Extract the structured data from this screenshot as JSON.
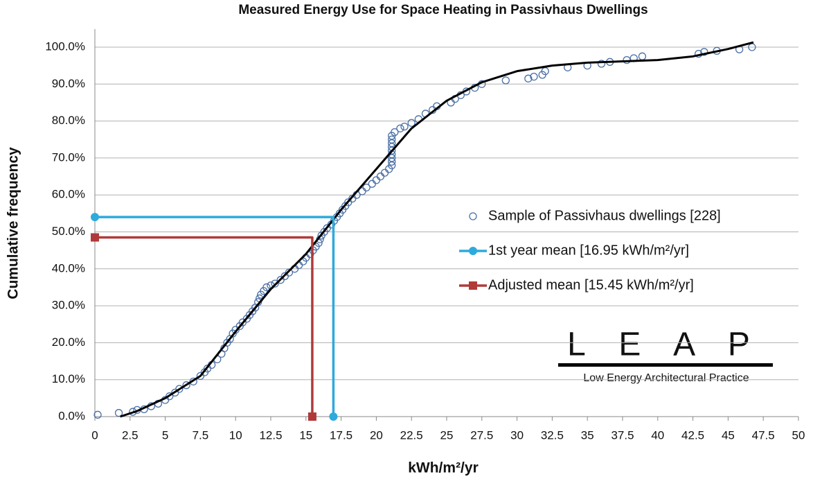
{
  "chart_data": {
    "type": "scatter",
    "title": "Measured Energy Use for Space Heating in Passivhaus Dwellings",
    "x_label": "kWh/m²/yr",
    "y_label": "Cumulative frequency",
    "xlim": [
      0,
      50
    ],
    "xticks": [
      0,
      2.5,
      5,
      7.5,
      10,
      12.5,
      15,
      17.5,
      20,
      22.5,
      25,
      27.5,
      30,
      32.5,
      35,
      37.5,
      40,
      42.5,
      45,
      47.5,
      50
    ],
    "ylim": [
      0,
      100
    ],
    "yticks": [
      {
        "value": 0,
        "label": "0.0%"
      },
      {
        "value": 10,
        "label": "10.0%"
      },
      {
        "value": 20,
        "label": "20.0%"
      },
      {
        "value": 30,
        "label": "30.0%"
      },
      {
        "value": 40,
        "label": "40.0%"
      },
      {
        "value": 50,
        "label": "50.0%"
      },
      {
        "value": 60,
        "label": "60.0%"
      },
      {
        "value": 70,
        "label": "70.0%"
      },
      {
        "value": 80,
        "label": "80.0%"
      },
      {
        "value": 90,
        "label": "90.0%"
      },
      {
        "value": 100,
        "label": "100.0%"
      }
    ],
    "grid": true,
    "legend": "right",
    "series": [
      {
        "name": "Sample of Passivhaus dwellings [228]",
        "type": "scatter",
        "color": "#4a6fa5",
        "marker": "circle",
        "x": [
          0.2,
          1.7,
          2.7,
          3,
          3.5,
          4,
          4.5,
          5,
          5.3,
          5.7,
          6,
          6.5,
          7,
          7.5,
          7.8,
          8,
          8.3,
          8.7,
          9,
          9.2,
          9.4,
          9.6,
          9.8,
          10,
          10.3,
          10.5,
          10.8,
          11,
          11.2,
          11.4,
          11.6,
          11.7,
          11.8,
          12,
          12.2,
          12.5,
          12.8,
          13.2,
          13.5,
          13.8,
          14.2,
          14.5,
          14.8,
          15,
          15.3,
          15.5,
          15.7,
          15.9,
          16,
          16.1,
          16.3,
          16.5,
          16.8,
          17,
          17.2,
          17.4,
          17.6,
          17.8,
          18,
          18.3,
          18.6,
          19,
          19.3,
          19.7,
          20,
          20.3,
          20.6,
          20.9,
          21.1,
          21.1,
          21.1,
          21.1,
          21.1,
          21.1,
          21.1,
          21.1,
          21.1,
          21.3,
          21.7,
          22,
          22.5,
          23,
          23.5,
          24,
          24.3,
          25.3,
          25.6,
          26,
          26.4,
          27,
          27.5,
          29.2,
          30.8,
          31.2,
          31.8,
          32,
          33.6,
          35,
          36,
          36.6,
          37.8,
          38.3,
          38.9,
          42.9,
          43.3,
          44.2,
          45.8,
          46.7
        ],
        "values": [
          0.5,
          1,
          1.3,
          1.8,
          2,
          2.8,
          3.5,
          4.5,
          5.5,
          6.5,
          7.5,
          8.5,
          9.5,
          11,
          12,
          13,
          14,
          15.5,
          17,
          18.5,
          20,
          21,
          22.5,
          23.5,
          24.5,
          25.5,
          26.5,
          27.5,
          28.5,
          29.5,
          31,
          32,
          33,
          34,
          35,
          35.5,
          36,
          37,
          38,
          39,
          40,
          41,
          42,
          43,
          44,
          45,
          46,
          47,
          48,
          49,
          50,
          51,
          52,
          53,
          54,
          55,
          56,
          57,
          58,
          59,
          60,
          61,
          62,
          63,
          64,
          65,
          66,
          67,
          68,
          69,
          70,
          71,
          72,
          73,
          74,
          75,
          76,
          77,
          78,
          78.5,
          79.5,
          80.5,
          82,
          83,
          84,
          85,
          86,
          87,
          88,
          89,
          90,
          91,
          91.5,
          92,
          92.5,
          93.5,
          94.5,
          95,
          95.5,
          96,
          96.5,
          97,
          97.5,
          98.2,
          98.7,
          99,
          99.4,
          100
        ]
      },
      {
        "type": "line",
        "color": "#000000",
        "x": [
          1.8,
          3,
          5,
          7.5,
          10,
          12.5,
          15,
          17.5,
          20,
          22.5,
          25,
          27.5,
          30,
          32.5,
          35,
          40,
          42.5,
          45,
          46.8
        ],
        "values": [
          0,
          1.5,
          5,
          11,
          23,
          34.5,
          44,
          56,
          67,
          78,
          85.5,
          90.5,
          93.5,
          95,
          95.8,
          96.5,
          97.5,
          99.5,
          101.3
        ]
      },
      {
        "name": "1st year mean [16.95 kWh/m²/yr]",
        "type": "line",
        "color": "#2eaadc",
        "marker": "circle",
        "x": [
          0,
          16.95,
          16.95
        ],
        "values": [
          54,
          54,
          0
        ]
      },
      {
        "name": "Adjusted mean [15.45 kWh/m²/yr]",
        "type": "line",
        "color": "#b03a3a",
        "marker": "square",
        "x": [
          0,
          15.45,
          15.45
        ],
        "values": [
          48.5,
          48.5,
          0
        ]
      }
    ],
    "logo": {
      "mark": "L E A P",
      "text": "Low Energy Architectural Practice"
    }
  }
}
